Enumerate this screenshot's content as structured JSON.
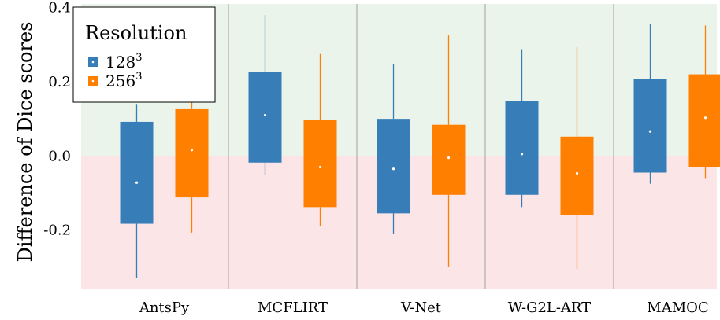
{
  "chart_data": {
    "type": "box",
    "ylabel": "Difference of Dice scores",
    "ylim": [
      -0.36,
      0.41
    ],
    "yticks": [
      {
        "value": 0.4,
        "label": "0.4"
      },
      {
        "value": 0.2,
        "label": "0.2"
      },
      {
        "value": 0.0,
        "label": "0.0"
      },
      {
        "value": -0.2,
        "label": "-0.2"
      }
    ],
    "categories": [
      "AntsPy",
      "MCFLIRT",
      "V-Net",
      "W-G2L-ART",
      "MAMOC"
    ],
    "legend": {
      "title": "Resolution",
      "position": "top-left",
      "entries": [
        {
          "base": "128",
          "sup": "3"
        },
        {
          "base": "256",
          "sup": "3"
        }
      ]
    },
    "background": {
      "positive_color": "#eaf4ea",
      "negative_color": "#fbe5e6"
    },
    "series": [
      {
        "name": "128^3",
        "color": "#377eb8",
        "boxes": [
          {
            "min": -0.33,
            "q1": -0.183,
            "median": -0.072,
            "q3": 0.092,
            "max": 0.14
          },
          {
            "min": -0.052,
            "q1": -0.018,
            "median": 0.11,
            "q3": 0.226,
            "max": 0.38
          },
          {
            "min": -0.21,
            "q1": -0.155,
            "median": -0.035,
            "q3": 0.1,
            "max": 0.247
          },
          {
            "min": -0.138,
            "q1": -0.105,
            "median": 0.005,
            "q3": 0.149,
            "max": 0.288
          },
          {
            "min": -0.075,
            "q1": -0.045,
            "median": 0.066,
            "q3": 0.207,
            "max": 0.357
          }
        ]
      },
      {
        "name": "256^3",
        "color": "#ff7f00",
        "boxes": [
          {
            "min": -0.207,
            "q1": -0.112,
            "median": 0.016,
            "q3": 0.128,
            "max": 0.145
          },
          {
            "min": -0.19,
            "q1": -0.138,
            "median": -0.03,
            "q3": 0.098,
            "max": 0.275
          },
          {
            "min": -0.3,
            "q1": -0.105,
            "median": -0.005,
            "q3": 0.084,
            "max": 0.325
          },
          {
            "min": -0.305,
            "q1": -0.16,
            "median": -0.047,
            "q3": 0.052,
            "max": 0.293
          },
          {
            "min": -0.062,
            "q1": -0.03,
            "median": 0.103,
            "q3": 0.22,
            "max": 0.352
          }
        ]
      }
    ]
  }
}
